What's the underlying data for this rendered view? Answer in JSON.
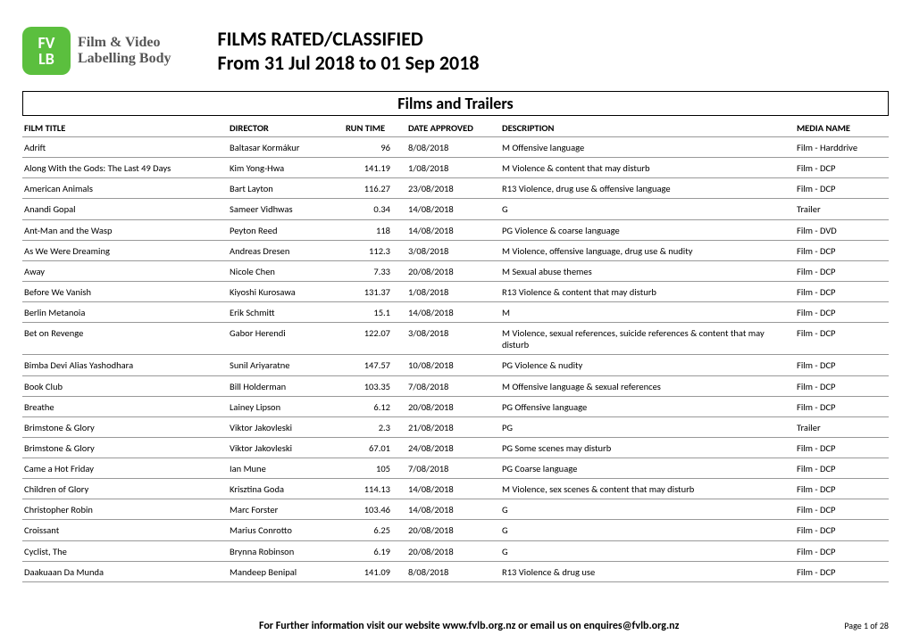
{
  "logo": {
    "top": "FV",
    "bottom": "LB",
    "brand_line1": "Film & Video",
    "brand_line2": "Labelling Body",
    "bg_color": "#5bbf3e"
  },
  "header": {
    "title1": "FILMS RATED/CLASSIFIED",
    "title2": "From 31 Jul 2018 to 01 Sep 2018"
  },
  "section_title": "Films and Trailers",
  "columns": {
    "film_title": "FILM TITLE",
    "director": "DIRECTOR",
    "run_time": "RUN TIME",
    "date_approved": "DATE APPROVED",
    "description": "DESCRIPTION",
    "media_name": "MEDIA NAME"
  },
  "rows": [
    {
      "title": "Adrift",
      "director": "Baltasar Kormákur",
      "runtime": "96",
      "date": "8/08/2018",
      "desc": "M Offensive language",
      "media": "Film - Harddrive"
    },
    {
      "title": "Along With the Gods: The Last 49 Days",
      "director": "Kim Yong-Hwa",
      "runtime": "141.19",
      "date": "1/08/2018",
      "desc": "M Violence & content that may disturb",
      "media": "Film - DCP"
    },
    {
      "title": "American Animals",
      "director": "Bart Layton",
      "runtime": "116.27",
      "date": "23/08/2018",
      "desc": "R13 Violence, drug use & offensive language",
      "media": "Film - DCP"
    },
    {
      "title": "Anandi Gopal",
      "director": "Sameer Vidhwas",
      "runtime": "0.34",
      "date": "14/08/2018",
      "desc": "G",
      "media": "Trailer"
    },
    {
      "title": "Ant-Man and the Wasp",
      "director": "Peyton Reed",
      "runtime": "118",
      "date": "14/08/2018",
      "desc": "PG Violence & coarse language",
      "media": "Film - DVD"
    },
    {
      "title": "As We Were Dreaming",
      "director": "Andreas Dresen",
      "runtime": "112.3",
      "date": "3/08/2018",
      "desc": "M Violence, offensive language, drug use & nudity",
      "media": "Film - DCP"
    },
    {
      "title": "Away",
      "director": "Nicole Chen",
      "runtime": "7.33",
      "date": "20/08/2018",
      "desc": "M Sexual abuse themes",
      "media": "Film - DCP"
    },
    {
      "title": "Before We Vanish",
      "director": "Kiyoshi Kurosawa",
      "runtime": "131.37",
      "date": "1/08/2018",
      "desc": "R13 Violence & content that may disturb",
      "media": "Film - DCP"
    },
    {
      "title": "Berlin Metanoia",
      "director": "Erik Schmitt",
      "runtime": "15.1",
      "date": "14/08/2018",
      "desc": "M",
      "media": "Film - DCP"
    },
    {
      "title": "Bet on Revenge",
      "director": "Gabor Herendi",
      "runtime": "122.07",
      "date": "3/08/2018",
      "desc": "M Violence, sexual references, suicide references & content that may disturb",
      "media": "Film - DCP"
    },
    {
      "title": "Bimba Devi Alias Yashodhara",
      "director": "Sunil Ariyaratne",
      "runtime": "147.57",
      "date": "10/08/2018",
      "desc": "PG Violence & nudity",
      "media": "Film - DCP"
    },
    {
      "title": "Book Club",
      "director": "Bill Holderman",
      "runtime": "103.35",
      "date": "7/08/2018",
      "desc": "M Offensive language & sexual references",
      "media": "Film - DCP"
    },
    {
      "title": "Breathe",
      "director": "Lainey Lipson",
      "runtime": "6.12",
      "date": "20/08/2018",
      "desc": "PG Offensive language",
      "media": "Film - DCP"
    },
    {
      "title": "Brimstone & Glory",
      "director": "Viktor Jakovleski",
      "runtime": "2.3",
      "date": "21/08/2018",
      "desc": "PG",
      "media": "Trailer"
    },
    {
      "title": "Brimstone & Glory",
      "director": "Viktor Jakovleski",
      "runtime": "67.01",
      "date": "24/08/2018",
      "desc": "PG Some scenes may disturb",
      "media": "Film - DCP"
    },
    {
      "title": "Came a Hot Friday",
      "director": "Ian Mune",
      "runtime": "105",
      "date": "7/08/2018",
      "desc": "PG Coarse language",
      "media": "Film - DCP"
    },
    {
      "title": "Children of Glory",
      "director": "Krisztina Goda",
      "runtime": "114.13",
      "date": "14/08/2018",
      "desc": "M Violence, sex scenes & content that may disturb",
      "media": "Film - DCP"
    },
    {
      "title": "Christopher Robin",
      "director": "Marc Forster",
      "runtime": "103.46",
      "date": "14/08/2018",
      "desc": "G",
      "media": "Film - DCP"
    },
    {
      "title": "Croissant",
      "director": "Marius Conrotto",
      "runtime": "6.25",
      "date": "20/08/2018",
      "desc": "G",
      "media": "Film - DCP"
    },
    {
      "title": "Cyclist, The",
      "director": "Brynna Robinson",
      "runtime": "6.19",
      "date": "20/08/2018",
      "desc": "G",
      "media": "Film - DCP"
    },
    {
      "title": "Daakuaan Da Munda",
      "director": "Mandeep Benipal",
      "runtime": "141.09",
      "date": "8/08/2018",
      "desc": "R13 Violence & drug use",
      "media": "Film - DCP"
    }
  ],
  "footer": {
    "message": "For Further information visit our website www.fvlb.org.nz or email us on enquires@fvlb.org.nz",
    "page": "Page 1 of  28"
  }
}
